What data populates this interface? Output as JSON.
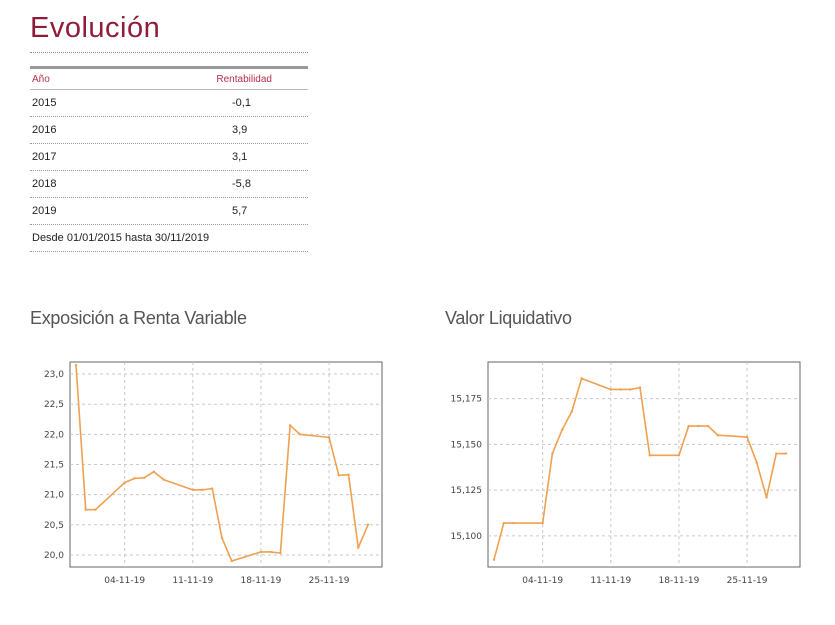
{
  "header": {
    "title": "Evolución"
  },
  "table": {
    "col_year": "Año",
    "col_return": "Rentabilidad",
    "rows": [
      {
        "year": "2015",
        "value": "-0,1"
      },
      {
        "year": "2016",
        "value": "3,9"
      },
      {
        "year": "2017",
        "value": "3,1"
      },
      {
        "year": "2018",
        "value": "-5,8"
      },
      {
        "year": "2019",
        "value": "5,7"
      }
    ],
    "footer": "Desde 01/01/2015 hasta 30/11/2019"
  },
  "colors": {
    "accent": "#8f1d3a",
    "line": "#f0a050",
    "grid": "#c8c8c8"
  },
  "chart_data": [
    {
      "type": "line",
      "title": "Exposición a Renta Variable",
      "ylim": [
        19.8,
        23.2
      ],
      "yticks": [
        "23,0",
        "22,5",
        "22,0",
        "21,5",
        "21,0",
        "20,5",
        "20,0"
      ],
      "ytick_values": [
        23.0,
        22.5,
        22.0,
        21.5,
        21.0,
        20.5,
        20.0
      ],
      "xticks": [
        "04-11-19",
        "11-11-19",
        "18-11-19",
        "25-11-19"
      ],
      "xtick_dates": [
        "2019-11-04",
        "2019-11-11",
        "2019-11-18",
        "2019-11-25"
      ],
      "x": [
        "2019-10-30",
        "2019-10-31",
        "2019-11-01",
        "2019-11-04",
        "2019-11-05",
        "2019-11-06",
        "2019-11-07",
        "2019-11-08",
        "2019-11-11",
        "2019-11-12",
        "2019-11-13",
        "2019-11-14",
        "2019-11-15",
        "2019-11-18",
        "2019-11-19",
        "2019-11-20",
        "2019-11-21",
        "2019-11-22",
        "2019-11-25",
        "2019-11-26",
        "2019-11-27",
        "2019-11-28",
        "2019-11-29"
      ],
      "values": [
        23.15,
        20.75,
        20.75,
        21.2,
        21.27,
        21.28,
        21.38,
        21.25,
        21.08,
        21.08,
        21.1,
        20.28,
        19.9,
        20.05,
        20.05,
        20.03,
        22.15,
        22.0,
        21.95,
        21.32,
        21.33,
        20.12,
        20.5
      ],
      "grid": true
    },
    {
      "type": "line",
      "title": "Valor Liquidativo",
      "ylim": [
        15.083,
        15.195
      ],
      "yticks": [
        "15,175",
        "15,150",
        "15,125",
        "15,100"
      ],
      "ytick_values": [
        15.175,
        15.15,
        15.125,
        15.1
      ],
      "xticks": [
        "04-11-19",
        "11-11-19",
        "18-11-19",
        "25-11-19"
      ],
      "xtick_dates": [
        "2019-11-04",
        "2019-11-11",
        "2019-11-18",
        "2019-11-25"
      ],
      "x": [
        "2019-10-30",
        "2019-10-31",
        "2019-11-01",
        "2019-11-04",
        "2019-11-05",
        "2019-11-06",
        "2019-11-07",
        "2019-11-08",
        "2019-11-11",
        "2019-11-12",
        "2019-11-13",
        "2019-11-14",
        "2019-11-15",
        "2019-11-18",
        "2019-11-19",
        "2019-11-20",
        "2019-11-21",
        "2019-11-22",
        "2019-11-25",
        "2019-11-26",
        "2019-11-27",
        "2019-11-28",
        "2019-11-29"
      ],
      "values": [
        15.087,
        15.107,
        15.107,
        15.107,
        15.145,
        15.158,
        15.168,
        15.186,
        15.18,
        15.18,
        15.18,
        15.181,
        15.144,
        15.144,
        15.16,
        15.16,
        15.16,
        15.155,
        15.154,
        15.14,
        15.121,
        15.145,
        15.145
      ],
      "grid": true
    }
  ]
}
